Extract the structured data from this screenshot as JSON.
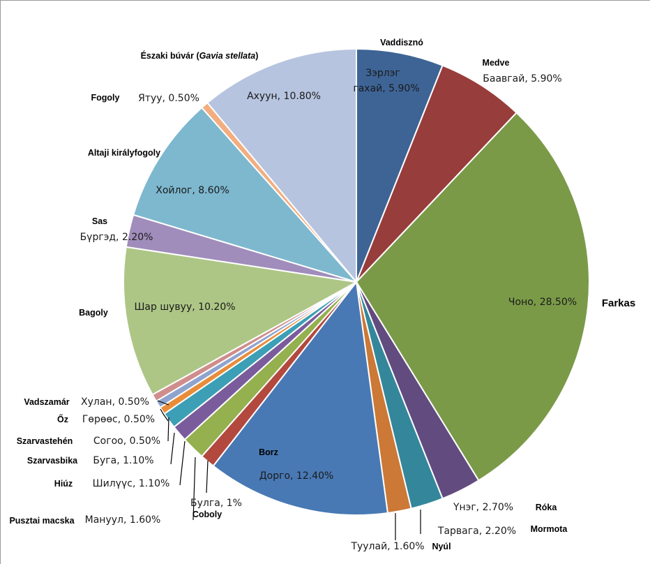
{
  "chart_data": {
    "type": "pie",
    "title": "",
    "slices": [
      {
        "mn": "Зэрлэг гахай",
        "mn_lines": [
          "Зэрлэг",
          "гахай, 5.90%"
        ],
        "hu": "Vaddisznó",
        "value": 5.9,
        "label": "Зэрлэг гахай, 5.90%",
        "color": "#3e6496"
      },
      {
        "mn": "Баавгай",
        "hu": "Medve",
        "value": 5.9,
        "label": "Баавгай, 5.90%",
        "color": "#973d3b"
      },
      {
        "mn": "Чоно",
        "hu": "Farkas",
        "value": 28.5,
        "label": "Чоно, 28.50%",
        "color": "#7a9a48"
      },
      {
        "mn": "Үнэг",
        "hu": "Róka",
        "value": 2.7,
        "label": "Үнэг, 2.70%",
        "color": "#624b7f"
      },
      {
        "mn": "Тарвага",
        "hu": "Mormota",
        "value": 2.2,
        "label": "Тарвага, 2.20%",
        "color": "#34879b"
      },
      {
        "mn": "Туулай",
        "hu": "Nyúl",
        "value": 1.6,
        "label": "Туулай, 1.60%",
        "color": "#cc7836"
      },
      {
        "mn": "Дорго",
        "hu": "Borz",
        "value": 12.4,
        "label": "Дорго, 12.40%",
        "color": "#4879b4"
      },
      {
        "mn": "Булга",
        "hu": "Coboly",
        "value": 1.0,
        "label": "Булга, 1%",
        "color": "#b3483f"
      },
      {
        "mn": "Манул",
        "hu": "Pusztai macska",
        "value": 1.6,
        "label": "Мануул, 1.60%",
        "color": "#94b04f"
      },
      {
        "mn": "Шилүүс",
        "hu": "Hiúz",
        "value": 1.1,
        "label": "Шилүүс, 1.10%",
        "color": "#7a5c9c"
      },
      {
        "mn": "Буга",
        "hu": "Szarvasbika",
        "value": 1.1,
        "label": "Буга, 1.10%",
        "color": "#3c9fb5"
      },
      {
        "mn": "Согоо",
        "hu": "Szarvastehén",
        "value": 0.5,
        "label": "Согоо, 0.50%",
        "color": "#e98c3a"
      },
      {
        "mn": "Гөрөөс",
        "hu": "Őz",
        "value": 0.5,
        "label": "Гөрөөс, 0.50%",
        "color": "#8ea4cf"
      },
      {
        "mn": "Хулан",
        "hu": "Vadszamár",
        "value": 0.5,
        "label": "Хулан, 0.50%",
        "color": "#cf8d8b"
      },
      {
        "mn": "Шар шувуу",
        "hu": "Bagoly",
        "value": 10.2,
        "label": "Шар шувуу, 10.20%",
        "color": "#adc686"
      },
      {
        "mn": "Бүргэд",
        "hu": "Sas",
        "value": 2.2,
        "label": "Бүргэд, 2.20%",
        "color": "#a08dbb"
      },
      {
        "mn": "Хойлог",
        "hu": "Altaji királyfogoly",
        "value": 8.6,
        "label": "Хойлог, 8.60%",
        "color": "#7db8cf"
      },
      {
        "mn": "Ятуу",
        "hu": "Fogoly",
        "value": 0.5,
        "label": "Ятуу, 0.50%",
        "color": "#f2ae80"
      },
      {
        "mn": "Ахуун",
        "hu": "Északi búvár (Gavia stellata)",
        "hu_parts": [
          "Északi búvár (",
          "Gavia stellata",
          ")"
        ],
        "value": 10.8,
        "label": "Ахуун, 10.80%",
        "color": "#b6c4df"
      }
    ]
  }
}
